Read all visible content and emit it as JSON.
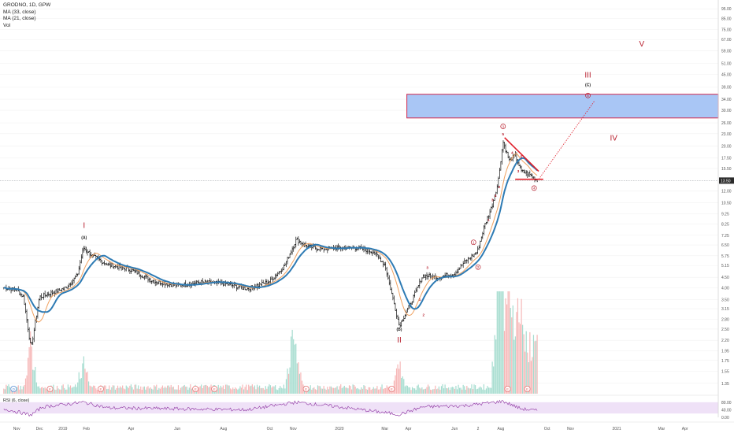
{
  "legend": {
    "symbol_line": "GRODNO, 1D, GPW",
    "ma_short": "MA (33, close)",
    "ma_long": "MA (21, close)",
    "volume": "Vol",
    "rsi": "RSI (6, close)"
  },
  "colors": {
    "price_bar": "#111111",
    "ma_slow": "#2e7bb4",
    "ma_fast": "#f0a160",
    "box_fill": "#a9c6f5",
    "box_border": "#d0284e",
    "wave_label": "#b71c2b",
    "triangle": "#e01f2a",
    "projection": "#e01f2a",
    "volume_up": "#a5dccf",
    "volume_down": "#f6b7b7",
    "rsi_line": "#8a2e9e",
    "rsi_band": "#efe1f7",
    "event_marker": "#e57373",
    "dividend_marker": "#5a8fd6"
  },
  "chart_data": {
    "type": "candlestick",
    "price_scale": "log",
    "price_axis_ticks": [
      "95.00",
      "85.00",
      "75.00",
      "67.00",
      "59.00",
      "51.00",
      "45.00",
      "39.00",
      "34.00",
      "30.00",
      "26.00",
      "23.00",
      "20.00",
      "17.50",
      "15.50",
      "13.50",
      "12.00",
      "10.50",
      "9.25",
      "8.25",
      "7.25",
      "6.50",
      "5.75",
      "5.15",
      "4.50",
      "4.00",
      "3.50",
      "3.15",
      "2.80",
      "2.50",
      "2.20",
      "1.95",
      "1.75",
      "1.55",
      "1.35"
    ],
    "last_price": "13.50",
    "rsi_axis_ticks": [
      "80.00",
      "40.00",
      "0.00"
    ],
    "time_axis_ticks": [
      "Nov",
      "Dec",
      "2019",
      "Feb",
      "Apr",
      "Jun",
      "Aug",
      "Oct",
      "Nov",
      "2020",
      "Mar",
      "Apr",
      "Jun",
      "2",
      "Aug",
      "Oct",
      "Nov",
      "2021",
      "Mar",
      "Apr"
    ],
    "ylim": [
      1.2,
      105
    ],
    "price_anchors": [
      [
        "2018-10-15",
        4.0
      ],
      [
        "2018-11-01",
        3.9
      ],
      [
        "2018-11-10",
        3.6
      ],
      [
        "2018-11-20",
        2.0
      ],
      [
        "2018-12-01",
        3.6
      ],
      [
        "2018-12-20",
        3.8
      ],
      [
        "2019-01-05",
        4.0
      ],
      [
        "2019-01-20",
        4.6
      ],
      [
        "2019-01-28",
        6.3
      ],
      [
        "2019-02-10",
        5.7
      ],
      [
        "2019-03-01",
        5.2
      ],
      [
        "2019-04-01",
        4.9
      ],
      [
        "2019-05-01",
        4.3
      ],
      [
        "2019-06-01",
        4.1
      ],
      [
        "2019-07-01",
        4.25
      ],
      [
        "2019-08-01",
        4.2
      ],
      [
        "2019-09-01",
        3.95
      ],
      [
        "2019-10-01",
        4.3
      ],
      [
        "2019-10-20",
        5.1
      ],
      [
        "2019-11-05",
        6.9
      ],
      [
        "2019-11-20",
        6.4
      ],
      [
        "2019-12-10",
        6.2
      ],
      [
        "2020-01-01",
        6.3
      ],
      [
        "2020-01-25",
        6.3
      ],
      [
        "2020-02-15",
        6.0
      ],
      [
        "2020-03-01",
        5.2
      ],
      [
        "2020-03-20",
        2.6
      ],
      [
        "2020-04-05",
        3.4
      ],
      [
        "2020-04-20",
        4.6
      ],
      [
        "2020-05-10",
        4.5
      ],
      [
        "2020-06-01",
        4.7
      ],
      [
        "2020-06-15",
        5.4
      ],
      [
        "2020-07-01",
        6.0
      ],
      [
        "2020-07-10",
        8.0
      ],
      [
        "2020-07-20",
        10.0
      ],
      [
        "2020-07-28",
        13.0
      ],
      [
        "2020-08-04",
        21.0
      ],
      [
        "2020-08-12",
        17.0
      ],
      [
        "2020-08-20",
        18.0
      ],
      [
        "2020-08-28",
        15.0
      ],
      [
        "2020-09-08",
        14.5
      ],
      [
        "2020-09-18",
        13.5
      ]
    ],
    "series": [
      {
        "name": "MA (33, close)",
        "type": "line"
      },
      {
        "name": "MA (21, close)",
        "type": "line"
      }
    ],
    "annotations": {
      "resistance_box": {
        "x_start": "2020-03-30",
        "x_end": "2021-05-15",
        "y_low": 27.5,
        "y_high": 36.0
      },
      "triangle": {
        "top_left": [
          "2020-08-06",
          22.0
        ],
        "right_tip": [
          "2020-09-20",
          15.0
        ],
        "bottom_left": [
          "2020-08-20",
          13.7
        ],
        "bottom_right": [
          "2020-09-26",
          13.7
        ]
      },
      "projection_line": {
        "from": [
          "2020-09-20",
          13.7
        ],
        "to": [
          "2020-12-03",
          33.5
        ]
      },
      "wave_labels": [
        {
          "text": "I",
          "x": "2019-01-29",
          "y": 7.9,
          "size": "large"
        },
        {
          "text": "(A)",
          "x": "2019-01-29",
          "y": 6.95,
          "size": "small"
        },
        {
          "text": "(B)",
          "x": "2020-03-20",
          "y": 2.45,
          "size": "small"
        },
        {
          "text": "II",
          "x": "2020-03-20",
          "y": 2.15,
          "size": "large"
        },
        {
          "text": "III",
          "x": "2020-11-24",
          "y": 43.5,
          "size": "large"
        },
        {
          "text": "(C)",
          "x": "2020-11-24",
          "y": 39.5,
          "size": "small"
        },
        {
          "text": "IV",
          "x": "2020-12-28",
          "y": 21.3,
          "size": "large"
        },
        {
          "text": "V",
          "x": "2021-02-03",
          "y": 62.0,
          "size": "large"
        },
        {
          "text": "1",
          "x": "2020-06-26",
          "y": 6.7,
          "size": "circle"
        },
        {
          "text": "2",
          "x": "2020-07-02",
          "y": 5.05,
          "size": "circle"
        },
        {
          "text": "3",
          "x": "2020-08-04",
          "y": 25.0,
          "size": "circle"
        },
        {
          "text": "4",
          "x": "2020-09-14",
          "y": 12.4,
          "size": "circle"
        },
        {
          "text": "5",
          "x": "2020-11-24",
          "y": 35.5,
          "size": "circle"
        },
        {
          "text": "5",
          "x": "2020-08-04",
          "y": 22.6,
          "size": "tiny"
        },
        {
          "text": "3",
          "x": "2020-07-21",
          "y": 10.7,
          "size": "tiny"
        },
        {
          "text": "4",
          "x": "2020-07-25",
          "y": 11.2,
          "size": "tiny"
        },
        {
          "text": "1",
          "x": "2020-07-16",
          "y": 8.5,
          "size": "tiny"
        },
        {
          "text": "4",
          "x": "2020-08-16",
          "y": 18.3,
          "size": "tiny"
        },
        {
          "text": "2",
          "x": "2020-07-30",
          "y": 12.4,
          "size": "tiny"
        },
        {
          "text": "1",
          "x": "2020-04-16",
          "y": 3.45,
          "size": "tiny"
        },
        {
          "text": "2",
          "x": "2020-04-21",
          "y": 2.9,
          "size": "tiny"
        },
        {
          "text": "3",
          "x": "2020-04-26",
          "y": 4.95,
          "size": "tiny"
        },
        {
          "text": "3",
          "x": "2020-08-24",
          "y": 14.8,
          "size": "tiny"
        },
        {
          "text": "5",
          "x": "2020-08-28",
          "y": 17.5,
          "size": "tiny"
        }
      ],
      "event_markers": [
        {
          "text": "D",
          "x": "2018-10-28",
          "kind": "dividend"
        },
        {
          "text": "E",
          "x": "2018-12-15",
          "kind": "earnings"
        },
        {
          "text": "E",
          "x": "2019-02-20",
          "kind": "earnings"
        },
        {
          "text": "E",
          "x": "2019-06-25",
          "kind": "earnings"
        },
        {
          "text": "E",
          "x": "2019-07-20",
          "kind": "earnings"
        },
        {
          "text": "E",
          "x": "2019-11-18",
          "kind": "earnings"
        },
        {
          "text": "E",
          "x": "2020-03-10",
          "kind": "earnings"
        },
        {
          "text": "E",
          "x": "2020-08-10",
          "kind": "earnings"
        },
        {
          "text": "E",
          "x": "2020-09-05",
          "kind": "earnings"
        }
      ],
      "volume_spikes": [
        [
          "2018-11-20",
          1.0
        ],
        [
          "2019-01-28",
          0.5
        ],
        [
          "2019-10-30",
          0.8
        ],
        [
          "2019-11-05",
          0.55
        ],
        [
          "2020-03-20",
          0.45
        ],
        [
          "2020-07-28",
          1.9
        ],
        [
          "2020-08-04",
          2.1
        ],
        [
          "2020-08-12",
          1.6
        ],
        [
          "2020-08-20",
          1.2
        ],
        [
          "2020-08-28",
          1.4
        ],
        [
          "2020-09-08",
          1.0
        ],
        [
          "2020-09-18",
          0.8
        ]
      ],
      "rsi_values": [
        [
          "2018-10-15",
          45
        ],
        [
          "2018-11-20",
          12
        ],
        [
          "2018-12-05",
          55
        ],
        [
          "2019-01-28",
          80
        ],
        [
          "2019-03-01",
          50
        ],
        [
          "2019-06-01",
          45
        ],
        [
          "2019-09-01",
          40
        ],
        [
          "2019-11-05",
          80
        ],
        [
          "2020-01-01",
          55
        ],
        [
          "2020-03-20",
          15
        ],
        [
          "2020-04-20",
          55
        ],
        [
          "2020-06-15",
          62
        ],
        [
          "2020-08-04",
          85
        ],
        [
          "2020-08-28",
          45
        ],
        [
          "2020-09-18",
          35
        ]
      ]
    }
  }
}
